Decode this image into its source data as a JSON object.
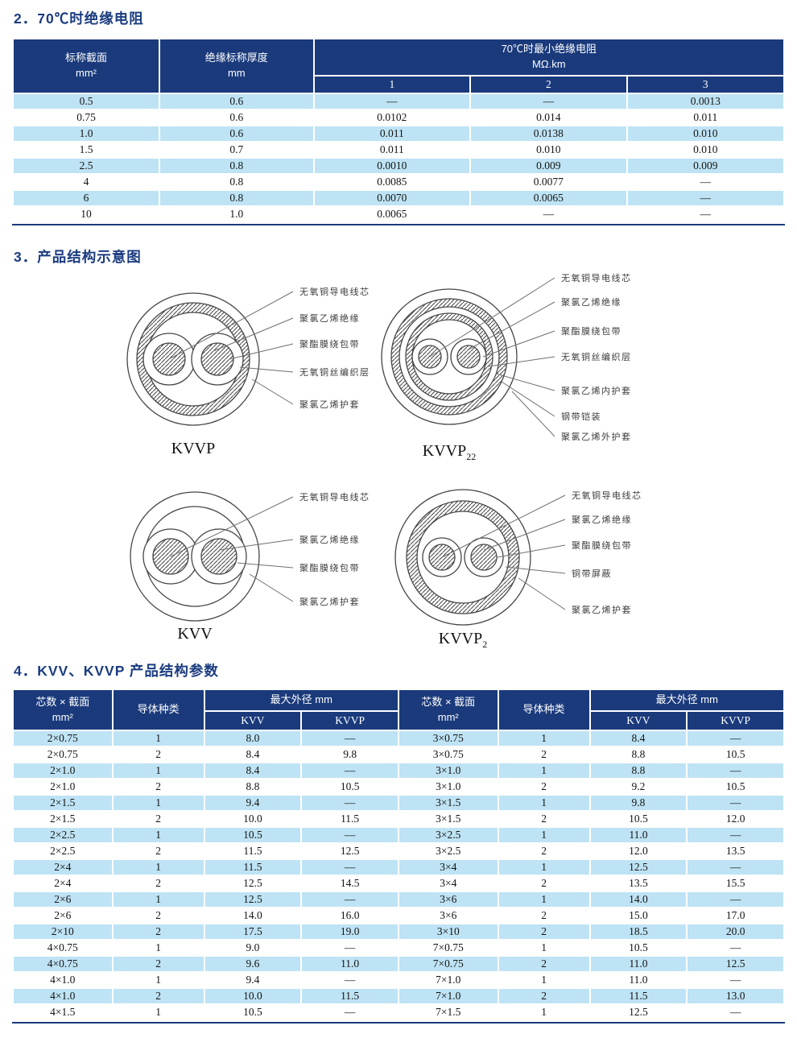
{
  "colors": {
    "accent_navy": "#1a3a7c",
    "row_light_blue": "#bee3f4",
    "heading_text": "#1b3c80"
  },
  "sections": {
    "s2": {
      "title": "2．70℃时绝缘电阻"
    },
    "s3": {
      "title": "3．产品结构示意图"
    },
    "s4": {
      "title": "4．KVV、KVVP 产品结构参数"
    }
  },
  "table1": {
    "col1_header": "标称截面",
    "col1_unit": "mm²",
    "col2_header": "绝缘标称厚度",
    "col2_unit": "mm",
    "span_header": "70℃时最小绝缘电阻",
    "span_unit": "MΩ.km",
    "sub_headers": [
      "1",
      "2",
      "3"
    ],
    "rows": [
      [
        "0.5",
        "0.6",
        "—",
        "—",
        "0.0013"
      ],
      [
        "0.75",
        "0.6",
        "0.0102",
        "0.014",
        "0.011"
      ],
      [
        "1.0",
        "0.6",
        "0.011",
        "0.0138",
        "0.010"
      ],
      [
        "1.5",
        "0.7",
        "0.011",
        "0.010",
        "0.010"
      ],
      [
        "2.5",
        "0.8",
        "0.0010",
        "0.009",
        "0.009"
      ],
      [
        "4",
        "0.8",
        "0.0085",
        "0.0077",
        "—"
      ],
      [
        "6",
        "0.8",
        "0.0070",
        "0.0065",
        "—"
      ],
      [
        "10",
        "1.0",
        "0.0065",
        "—",
        "—"
      ]
    ]
  },
  "diagrams": [
    {
      "id": "kvvp",
      "caption_base": "KVVP",
      "caption_sub": "",
      "labels": [
        "无氧铜导电线芯",
        "聚氯乙烯绝缘",
        "聚酯膜绕包带",
        "无氧铜丝编织层",
        "聚氯乙烯护套"
      ]
    },
    {
      "id": "kvvp22",
      "caption_base": "KVVP",
      "caption_sub": "22",
      "labels": [
        "无氧铜导电线芯",
        "聚氯乙烯绝缘",
        "聚酯膜绕包带",
        "无氧铜丝编织层",
        "聚氯乙烯内护套",
        "钢带铠装",
        "聚氯乙烯外护套"
      ]
    },
    {
      "id": "kvv",
      "caption_base": "KVV",
      "caption_sub": "",
      "labels": [
        "无氧铜导电线芯",
        "聚氯乙烯绝缘",
        "聚酯膜绕包带",
        "聚氯乙烯护套"
      ]
    },
    {
      "id": "kvvp2",
      "caption_base": "KVVP",
      "caption_sub": "2",
      "labels": [
        "无氧铜导电线芯",
        "聚氯乙烯绝缘",
        "聚酯膜绕包带",
        "铜带屏蔽",
        "聚氯乙烯护套"
      ]
    }
  ],
  "table2": {
    "h_cores": "芯数 × 截面",
    "h_cores_unit": "mm²",
    "h_conductor": "导体种类",
    "h_od": "最大外径 mm",
    "h_kvv": "KVV",
    "h_kvvp": "KVVP",
    "rows": [
      [
        "2×0.75",
        "1",
        "8.0",
        "—",
        "3×0.75",
        "1",
        "8.4",
        "—"
      ],
      [
        "2×0.75",
        "2",
        "8.4",
        "9.8",
        "3×0.75",
        "2",
        "8.8",
        "10.5"
      ],
      [
        "2×1.0",
        "1",
        "8.4",
        "—",
        "3×1.0",
        "1",
        "8.8",
        "—"
      ],
      [
        "2×1.0",
        "2",
        "8.8",
        "10.5",
        "3×1.0",
        "2",
        "9.2",
        "10.5"
      ],
      [
        "2×1.5",
        "1",
        "9.4",
        "—",
        "3×1.5",
        "1",
        "9.8",
        "—"
      ],
      [
        "2×1.5",
        "2",
        "10.0",
        "11.5",
        "3×1.5",
        "2",
        "10.5",
        "12.0"
      ],
      [
        "2×2.5",
        "1",
        "10.5",
        "—",
        "3×2.5",
        "1",
        "11.0",
        "—"
      ],
      [
        "2×2.5",
        "2",
        "11.5",
        "12.5",
        "3×2.5",
        "2",
        "12.0",
        "13.5"
      ],
      [
        "2×4",
        "1",
        "11.5",
        "—",
        "3×4",
        "1",
        "12.5",
        "—"
      ],
      [
        "2×4",
        "2",
        "12.5",
        "14.5",
        "3×4",
        "2",
        "13.5",
        "15.5"
      ],
      [
        "2×6",
        "1",
        "12.5",
        "—",
        "3×6",
        "1",
        "14.0",
        "—"
      ],
      [
        "2×6",
        "2",
        "14.0",
        "16.0",
        "3×6",
        "2",
        "15.0",
        "17.0"
      ],
      [
        "2×10",
        "2",
        "17.5",
        "19.0",
        "3×10",
        "2",
        "18.5",
        "20.0"
      ],
      [
        "4×0.75",
        "1",
        "9.0",
        "—",
        "7×0.75",
        "1",
        "10.5",
        "—"
      ],
      [
        "4×0.75",
        "2",
        "9.6",
        "11.0",
        "7×0.75",
        "2",
        "11.0",
        "12.5"
      ],
      [
        "4×1.0",
        "1",
        "9.4",
        "—",
        "7×1.0",
        "1",
        "11.0",
        "—"
      ],
      [
        "4×1.0",
        "2",
        "10.0",
        "11.5",
        "7×1.0",
        "2",
        "11.5",
        "13.0"
      ],
      [
        "4×1.5",
        "1",
        "10.5",
        "—",
        "7×1.5",
        "1",
        "12.5",
        "—"
      ]
    ]
  }
}
